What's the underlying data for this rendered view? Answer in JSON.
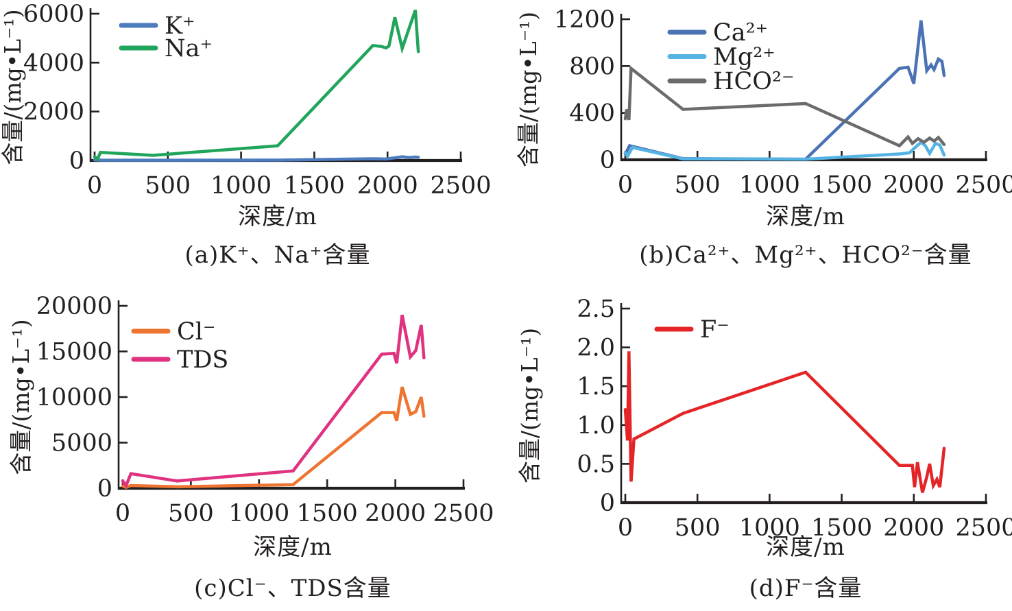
{
  "figure": {
    "background": "#ffffff",
    "text_color": "#231f20",
    "axis_color": "#231f20",
    "xlabel": "深度/m",
    "ylabel": "含量/(mg•L⁻¹)"
  },
  "chart_data": [
    {
      "id": "a",
      "type": "line",
      "caption": "(a)K⁺、Na⁺含量",
      "xlabel": "深度/m",
      "ylabel": "含量/(mg•L⁻¹)",
      "xlim": [
        0,
        2500
      ],
      "ylim": [
        0,
        6000
      ],
      "xticks": [
        "0",
        "500",
        "1000",
        "1500",
        "2000",
        "2500"
      ],
      "yticks": [
        "0",
        "2000",
        "4000",
        "6000"
      ],
      "legend_position": "upper-left",
      "grid": false,
      "series": [
        {
          "name": "K⁺",
          "color": "#4d7cbe",
          "points": [
            [
              0,
              20
            ],
            [
              40,
              10
            ],
            [
              400,
              10
            ],
            [
              1250,
              15
            ],
            [
              1900,
              70
            ],
            [
              1990,
              60
            ],
            [
              2050,
              110
            ],
            [
              2100,
              150
            ],
            [
              2150,
              120
            ],
            [
              2190,
              140
            ],
            [
              2210,
              130
            ]
          ]
        },
        {
          "name": "Na⁺",
          "color": "#21a55c",
          "points": [
            [
              0,
              150
            ],
            [
              20,
              60
            ],
            [
              40,
              330
            ],
            [
              400,
              210
            ],
            [
              1250,
              600
            ],
            [
              1900,
              4700
            ],
            [
              1960,
              4660
            ],
            [
              1990,
              4600
            ],
            [
              2010,
              4680
            ],
            [
              2050,
              5850
            ],
            [
              2100,
              4580
            ],
            [
              2190,
              6150
            ],
            [
              2210,
              4450
            ]
          ]
        }
      ]
    },
    {
      "id": "b",
      "type": "line",
      "caption": "(b)Ca²⁺、Mg²⁺、HCO²⁻含量",
      "xlabel": "深度/m",
      "ylabel": "含量/(mg•L⁻¹)",
      "xlim": [
        0,
        2500
      ],
      "ylim": [
        0,
        1200
      ],
      "xticks": [
        "0",
        "500",
        "1000",
        "1500",
        "2000",
        "2500"
      ],
      "yticks": [
        "0",
        "400",
        "800",
        "1200"
      ],
      "legend_position": "upper-left",
      "grid": false,
      "series": [
        {
          "name": "Ca²⁺",
          "color": "#4a72b4",
          "points": [
            [
              0,
              50
            ],
            [
              30,
              120
            ],
            [
              400,
              10
            ],
            [
              1250,
              5
            ],
            [
              1900,
              780
            ],
            [
              1960,
              790
            ],
            [
              2000,
              650
            ],
            [
              2050,
              1190
            ],
            [
              2090,
              760
            ],
            [
              2120,
              810
            ],
            [
              2140,
              770
            ],
            [
              2170,
              860
            ],
            [
              2195,
              840
            ],
            [
              2210,
              720
            ]
          ]
        },
        {
          "name": "Mg²⁺",
          "color": "#55b3e4",
          "points": [
            [
              0,
              60
            ],
            [
              15,
              30
            ],
            [
              50,
              105
            ],
            [
              400,
              8
            ],
            [
              1250,
              5
            ],
            [
              1900,
              50
            ],
            [
              1970,
              60
            ],
            [
              2000,
              95
            ],
            [
              2050,
              150
            ],
            [
              2080,
              120
            ],
            [
              2110,
              55
            ],
            [
              2150,
              140
            ],
            [
              2180,
              125
            ],
            [
              2210,
              40
            ]
          ]
        },
        {
          "name": "HCO²⁻",
          "color": "#6b6b6e",
          "points": [
            [
              0,
              350
            ],
            [
              10,
              430
            ],
            [
              25,
              340
            ],
            [
              40,
              780
            ],
            [
              400,
              430
            ],
            [
              1250,
              480
            ],
            [
              1900,
              120
            ],
            [
              1960,
              195
            ],
            [
              1990,
              140
            ],
            [
              2030,
              180
            ],
            [
              2070,
              150
            ],
            [
              2110,
              185
            ],
            [
              2140,
              160
            ],
            [
              2170,
              190
            ],
            [
              2210,
              130
            ]
          ]
        }
      ]
    },
    {
      "id": "c",
      "type": "line",
      "caption": "(c)Cl⁻、TDS含量",
      "xlabel": "深度/m",
      "ylabel": "含量/(mg•L⁻¹)",
      "xlim": [
        0,
        2500
      ],
      "ylim": [
        0,
        20000
      ],
      "xticks": [
        "0",
        "500",
        "1000",
        "1500",
        "2000",
        "2500"
      ],
      "yticks": [
        "0",
        "5000",
        "10000",
        "15000",
        "20000"
      ],
      "legend_position": "upper-left",
      "grid": false,
      "series": [
        {
          "name": "Cl⁻",
          "color": "#ee7431",
          "points": [
            [
              0,
              250
            ],
            [
              25,
              100
            ],
            [
              60,
              300
            ],
            [
              400,
              160
            ],
            [
              1250,
              400
            ],
            [
              1900,
              8300
            ],
            [
              1990,
              8300
            ],
            [
              2010,
              7400
            ],
            [
              2050,
              11100
            ],
            [
              2110,
              8100
            ],
            [
              2150,
              8400
            ],
            [
              2190,
              10000
            ],
            [
              2210,
              7900
            ]
          ]
        },
        {
          "name": "TDS",
          "color": "#e0327f",
          "points": [
            [
              0,
              800
            ],
            [
              25,
              300
            ],
            [
              60,
              1600
            ],
            [
              400,
              800
            ],
            [
              1250,
              1900
            ],
            [
              1900,
              14700
            ],
            [
              1990,
              14800
            ],
            [
              2010,
              13700
            ],
            [
              2050,
              19000
            ],
            [
              2110,
              14400
            ],
            [
              2150,
              15100
            ],
            [
              2190,
              17900
            ],
            [
              2210,
              14300
            ]
          ]
        }
      ]
    },
    {
      "id": "d",
      "type": "line",
      "caption": "(d)F⁻含量",
      "xlabel": "深度/m",
      "ylabel": "含量/(mg•L⁻¹)",
      "xlim": [
        0,
        2500
      ],
      "ylim": [
        0,
        2.5
      ],
      "xticks": [
        "0",
        "500",
        "1000",
        "1500",
        "2000",
        "2500"
      ],
      "yticks": [
        "0",
        "0.5",
        "1.0",
        "1.5",
        "2.0",
        "2.5"
      ],
      "legend_position": "upper-left",
      "grid": false,
      "series": [
        {
          "name": "F⁻",
          "color": "#e42528",
          "points": [
            [
              0,
              1.2
            ],
            [
              15,
              0.8
            ],
            [
              25,
              1.95
            ],
            [
              40,
              0.27
            ],
            [
              60,
              0.82
            ],
            [
              400,
              1.15
            ],
            [
              1250,
              1.68
            ],
            [
              1900,
              0.48
            ],
            [
              1990,
              0.48
            ],
            [
              2005,
              0.2
            ],
            [
              2025,
              0.52
            ],
            [
              2060,
              0.13
            ],
            [
              2090,
              0.33
            ],
            [
              2110,
              0.5
            ],
            [
              2135,
              0.22
            ],
            [
              2160,
              0.3
            ],
            [
              2180,
              0.2
            ],
            [
              2210,
              0.7
            ]
          ]
        }
      ]
    }
  ]
}
